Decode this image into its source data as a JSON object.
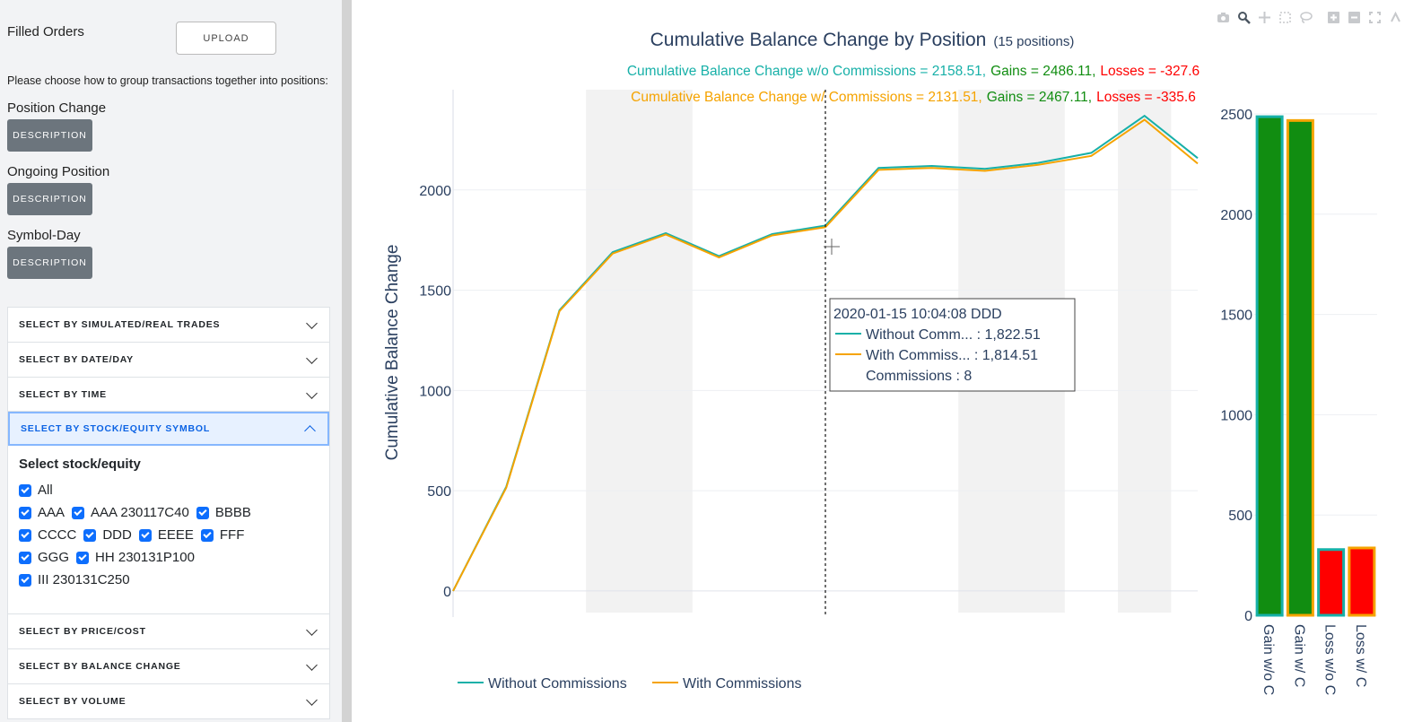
{
  "sidebar": {
    "filled_orders_label": "Filled Orders",
    "upload_label": "UPLOAD",
    "instruction": "Please choose how to group transactions together into positions:",
    "groups": [
      {
        "label": "Position Change",
        "button": "DESCRIPTION"
      },
      {
        "label": "Ongoing Position",
        "button": "DESCRIPTION"
      },
      {
        "label": "Symbol-Day",
        "button": "DESCRIPTION"
      }
    ],
    "accordions_top": [
      "SELECT BY SIMULATED/REAL TRADES",
      "SELECT BY DATE/DAY",
      "SELECT BY TIME"
    ],
    "accordion_open": {
      "header": "SELECT BY STOCK/EQUITY SYMBOL",
      "title": "Select stock/equity",
      "rows": [
        [
          "All"
        ],
        [
          "AAA",
          "AAA 230117C40",
          "BBBB"
        ],
        [
          "CCCC",
          "DDD",
          "EEEE",
          "FFF"
        ],
        [
          "GGG",
          "HH 230131P100"
        ],
        [
          "III 230131C250"
        ]
      ]
    },
    "accordions_bottom": [
      "SELECT BY PRICE/COST",
      "SELECT BY BALANCE CHANGE",
      "SELECT BY VOLUME"
    ]
  },
  "chart": {
    "title": "Cumulative Balance Change by Position",
    "title_suffix": "(15 positions)",
    "summary_wo": {
      "label": "Cumulative Balance Change w/o Commissions = 2158.51,",
      "gains": "Gains = 2486.11,",
      "losses": "Losses = -327.6"
    },
    "summary_w": {
      "label": "Cumulative Balance Change w/ Commissions = 2131.51,",
      "gains": "Gains = 2467.11,",
      "losses": "Losses = -335.6"
    },
    "tooltip": {
      "header": "2020-01-15 10:04:08 DDD",
      "line1": "Without Comm... : 1,822.51",
      "line2": "With Commiss... : 1,814.51",
      "line3": "Commissions : 8"
    },
    "legend": [
      "Without Commissions",
      "With Commissions"
    ]
  },
  "colors": {
    "without": "#17b0a8",
    "with": "#f5a300",
    "gain": "#118d11",
    "loss": "#ff0000",
    "title": "#2a3f5f"
  },
  "icons": [
    "camera-icon",
    "zoom-icon",
    "pan-icon",
    "box-select-icon",
    "lasso-icon",
    "zoom-in-icon",
    "zoom-out-icon",
    "autoscale-icon",
    "reset-axes-icon"
  ],
  "chart_data": [
    {
      "type": "line",
      "title": "Cumulative Balance Change by Position",
      "ylabel": "Cumulative Balance Change",
      "ylim": [
        -130,
        2500
      ],
      "yticks": [
        0,
        500,
        1000,
        1500,
        2000
      ],
      "x": [
        0,
        1,
        2,
        3,
        4,
        5,
        6,
        7,
        8,
        9,
        10,
        11,
        12,
        13,
        14
      ],
      "series": [
        {
          "name": "Without Commissions",
          "values": [
            0,
            520,
            1400,
            1690,
            1785,
            1670,
            1780,
            1822.51,
            2110,
            2120,
            2105,
            2135,
            2185,
            2370,
            2158.51
          ]
        },
        {
          "name": "With Commissions",
          "values": [
            0,
            515,
            1395,
            1683,
            1778,
            1663,
            1773,
            1814.51,
            2100,
            2110,
            2095,
            2125,
            2170,
            2350,
            2131.51
          ]
        }
      ],
      "shaded_bands": [
        [
          2.5,
          4.5
        ],
        [
          9.5,
          11.5
        ],
        [
          12.5,
          13.5
        ]
      ],
      "hover_x": 7,
      "grid": true,
      "legend": "bottom-left"
    },
    {
      "type": "bar",
      "categories": [
        "Gain w/o C",
        "Gain w/ C",
        "Loss w/o C",
        "Loss w/ C"
      ],
      "values": [
        2486.11,
        2467.11,
        327.6,
        335.6
      ],
      "yticks": [
        0,
        500,
        1000,
        1500,
        2000,
        2500
      ],
      "ylim": [
        0,
        2500
      ],
      "grid": true
    }
  ]
}
